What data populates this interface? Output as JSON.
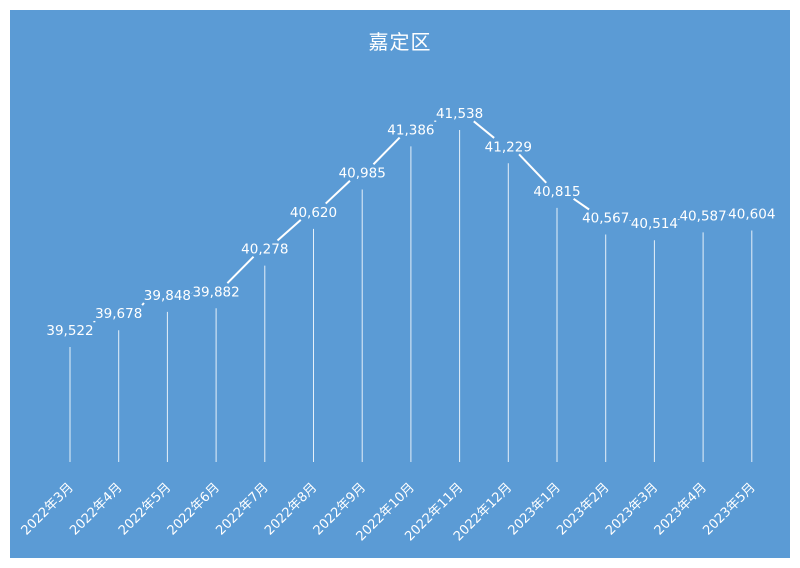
{
  "chart_data": {
    "type": "line",
    "title": "嘉定区",
    "categories": [
      "2022年3月",
      "2022年4月",
      "2022年5月",
      "2022年6月",
      "2022年7月",
      "2022年8月",
      "2022年9月",
      "2022年10月",
      "2022年11月",
      "2022年12月",
      "2023年1月",
      "2023年2月",
      "2023年3月",
      "2023年4月",
      "2023年5月"
    ],
    "series": [
      {
        "values": [
          39522,
          39678,
          39848,
          39882,
          40278,
          40620,
          40985,
          41386,
          41538,
          41229,
          40815,
          40567,
          40514,
          40587,
          40604
        ],
        "labels": [
          "39,522",
          "39,678",
          "39,848",
          "39,882",
          "40,278",
          "40,620",
          "40,985",
          "41,386",
          "41,538",
          "41,229",
          "40,815",
          "40,567",
          "40,514",
          "40,587",
          "40,604"
        ]
      }
    ],
    "drop_lines": true,
    "data_labels": true,
    "grid": false,
    "legend": "none",
    "xlabel": "",
    "ylabel": ""
  },
  "colors": {
    "background": "#5b9bd5",
    "line": "#ffffff",
    "text": "#ffffff"
  }
}
